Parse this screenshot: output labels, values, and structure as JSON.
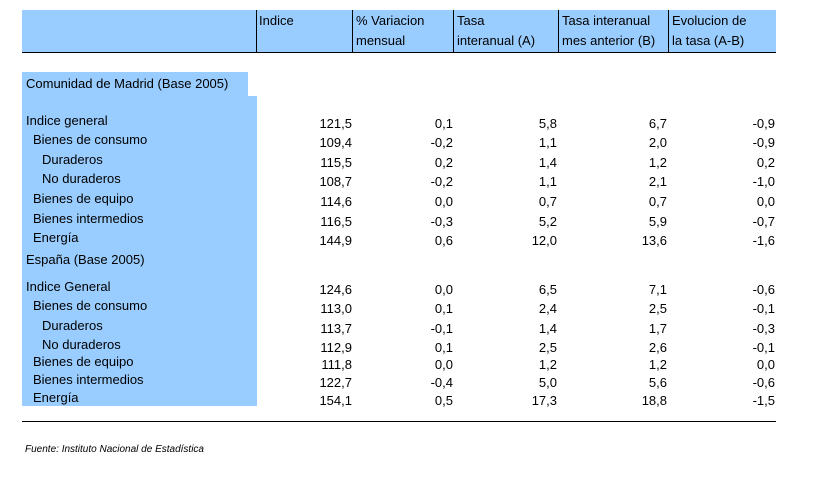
{
  "header": [
    "Indice",
    "% Variacion mensual",
    "Tasa interanual (A)",
    "Tasa interanual mes anterior (B)",
    "Evolucion de la tasa (A-B)"
  ],
  "header_lines": [
    [
      "Indice",
      ""
    ],
    [
      "% Variacion",
      "mensual"
    ],
    [
      "Tasa",
      "interanual (A)"
    ],
    [
      "Tasa interanual",
      "mes anterior (B)"
    ],
    [
      "Evolucion de",
      "la tasa (A-B)"
    ]
  ],
  "sections": [
    {
      "title": "Comunidad de Madrid (Base 2005)",
      "rows": [
        {
          "label": "Indice general",
          "indent": 0,
          "values": [
            "121,5",
            "0,1",
            "5,8",
            "6,7",
            "-0,9"
          ]
        },
        {
          "label": "Bienes de consumo",
          "indent": 1,
          "values": [
            "109,4",
            "-0,2",
            "1,1",
            "2,0",
            "-0,9"
          ]
        },
        {
          "label": "Duraderos",
          "indent": 2,
          "values": [
            "115,5",
            "0,2",
            "1,4",
            "1,2",
            "0,2"
          ]
        },
        {
          "label": "No duraderos",
          "indent": 2,
          "values": [
            "108,7",
            "-0,2",
            "1,1",
            "2,1",
            "-1,0"
          ]
        },
        {
          "label": "Bienes de equipo",
          "indent": 1,
          "values": [
            "114,6",
            "0,0",
            "0,7",
            "0,7",
            "0,0"
          ]
        },
        {
          "label": "Bienes intermedios",
          "indent": 1,
          "values": [
            "116,5",
            "-0,3",
            "5,2",
            "5,9",
            "-0,7"
          ]
        },
        {
          "label": "Energía",
          "indent": 1,
          "values": [
            "144,9",
            "0,6",
            "12,0",
            "13,6",
            "-1,6"
          ]
        }
      ]
    },
    {
      "title": "España (Base 2005)",
      "rows": [
        {
          "label": "Indice General",
          "indent": 0,
          "values": [
            "124,6",
            "0,0",
            "6,5",
            "7,1",
            "-0,6"
          ]
        },
        {
          "label": "Bienes de consumo",
          "indent": 1,
          "values": [
            "113,0",
            "0,1",
            "2,4",
            "2,5",
            "-0,1"
          ]
        },
        {
          "label": "Duraderos",
          "indent": 2,
          "values": [
            "113,7",
            "-0,1",
            "1,4",
            "1,7",
            "-0,3"
          ]
        },
        {
          "label": "No duraderos",
          "indent": 2,
          "values": [
            "112,9",
            "0,1",
            "2,5",
            "2,6",
            "-0,1"
          ]
        },
        {
          "label": "Bienes de equipo",
          "indent": 1,
          "values": [
            "111,8",
            "0,0",
            "1,2",
            "1,2",
            "0,0"
          ]
        },
        {
          "label": "Bienes intermedios",
          "indent": 1,
          "values": [
            "122,7",
            "-0,4",
            "5,0",
            "5,6",
            "-0,6"
          ]
        },
        {
          "label": "Energía",
          "indent": 1,
          "values": [
            "154,1",
            "0,5",
            "17,3",
            "18,8",
            "-1,5"
          ]
        }
      ]
    }
  ],
  "source": "Fuente: Instituto Nacional de Estadística"
}
